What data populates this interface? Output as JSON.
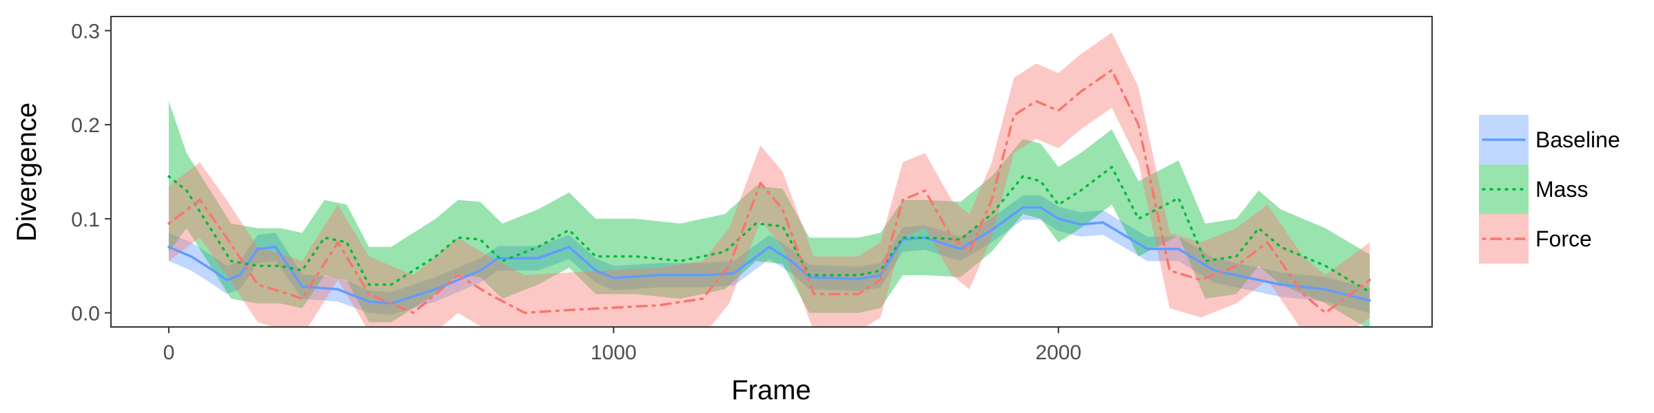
{
  "chart_data": {
    "type": "line",
    "xlabel": "Frame",
    "ylabel": "Divergence",
    "xlim": [
      -130,
      2840
    ],
    "ylim": [
      -0.015,
      0.315
    ],
    "xticks": [
      0,
      1000,
      2000
    ],
    "yticks": [
      0.0,
      0.1,
      0.2,
      0.3
    ],
    "xtick_labels": [
      "0",
      "1000",
      "2000"
    ],
    "ytick_labels": [
      "0.0",
      "0.1",
      "0.2",
      "0.3"
    ],
    "grid": false,
    "legend_position": "right",
    "series": [
      {
        "name": "Baseline",
        "color": "#619CFF",
        "band_color": "#619CFF",
        "line_style": "solid",
        "points": [
          [
            0,
            0.07,
            0.055,
            0.085
          ],
          [
            50,
            0.06,
            0.045,
            0.075
          ],
          [
            100,
            0.045,
            0.03,
            0.06
          ],
          [
            130,
            0.035,
            0.02,
            0.05
          ],
          [
            160,
            0.04,
            0.025,
            0.055
          ],
          [
            200,
            0.068,
            0.053,
            0.083
          ],
          [
            240,
            0.07,
            0.055,
            0.085
          ],
          [
            300,
            0.028,
            0.015,
            0.041
          ],
          [
            380,
            0.025,
            0.012,
            0.038
          ],
          [
            450,
            0.012,
            0.0,
            0.024
          ],
          [
            500,
            0.01,
            -0.002,
            0.022
          ],
          [
            600,
            0.025,
            0.012,
            0.038
          ],
          [
            700,
            0.045,
            0.032,
            0.058
          ],
          [
            740,
            0.058,
            0.045,
            0.071
          ],
          [
            830,
            0.058,
            0.045,
            0.071
          ],
          [
            900,
            0.07,
            0.057,
            0.083
          ],
          [
            960,
            0.045,
            0.032,
            0.058
          ],
          [
            1000,
            0.037,
            0.024,
            0.05
          ],
          [
            1100,
            0.04,
            0.027,
            0.053
          ],
          [
            1200,
            0.04,
            0.027,
            0.053
          ],
          [
            1270,
            0.042,
            0.029,
            0.055
          ],
          [
            1350,
            0.07,
            0.057,
            0.083
          ],
          [
            1400,
            0.055,
            0.042,
            0.068
          ],
          [
            1440,
            0.038,
            0.025,
            0.051
          ],
          [
            1550,
            0.036,
            0.023,
            0.049
          ],
          [
            1600,
            0.04,
            0.027,
            0.053
          ],
          [
            1650,
            0.078,
            0.065,
            0.091
          ],
          [
            1700,
            0.08,
            0.067,
            0.093
          ],
          [
            1780,
            0.068,
            0.055,
            0.081
          ],
          [
            1850,
            0.088,
            0.075,
            0.101
          ],
          [
            1920,
            0.112,
            0.099,
            0.125
          ],
          [
            1960,
            0.112,
            0.099,
            0.125
          ],
          [
            2000,
            0.1,
            0.087,
            0.113
          ],
          [
            2050,
            0.094,
            0.081,
            0.107
          ],
          [
            2100,
            0.096,
            0.083,
            0.109
          ],
          [
            2200,
            0.068,
            0.055,
            0.081
          ],
          [
            2270,
            0.068,
            0.055,
            0.081
          ],
          [
            2350,
            0.045,
            0.032,
            0.058
          ],
          [
            2420,
            0.038,
            0.025,
            0.051
          ],
          [
            2500,
            0.03,
            0.017,
            0.043
          ],
          [
            2600,
            0.025,
            0.012,
            0.038
          ],
          [
            2700,
            0.013,
            0.0,
            0.026
          ]
        ]
      },
      {
        "name": "Mass",
        "color": "#00BA38",
        "band_color": "#00BA38",
        "line_style": "dotted",
        "points": [
          [
            0,
            0.145,
            0.065,
            0.225
          ],
          [
            40,
            0.13,
            0.09,
            0.17
          ],
          [
            100,
            0.085,
            0.045,
            0.125
          ],
          [
            140,
            0.055,
            0.015,
            0.095
          ],
          [
            200,
            0.05,
            0.01,
            0.09
          ],
          [
            250,
            0.05,
            0.01,
            0.09
          ],
          [
            300,
            0.045,
            0.005,
            0.085
          ],
          [
            350,
            0.08,
            0.04,
            0.12
          ],
          [
            400,
            0.075,
            0.035,
            0.115
          ],
          [
            450,
            0.03,
            -0.01,
            0.07
          ],
          [
            500,
            0.03,
            -0.01,
            0.07
          ],
          [
            600,
            0.06,
            0.02,
            0.1
          ],
          [
            650,
            0.08,
            0.04,
            0.12
          ],
          [
            700,
            0.078,
            0.038,
            0.118
          ],
          [
            750,
            0.055,
            0.015,
            0.095
          ],
          [
            830,
            0.07,
            0.03,
            0.11
          ],
          [
            900,
            0.088,
            0.048,
            0.128
          ],
          [
            960,
            0.06,
            0.02,
            0.1
          ],
          [
            1050,
            0.06,
            0.02,
            0.1
          ],
          [
            1150,
            0.055,
            0.015,
            0.095
          ],
          [
            1250,
            0.065,
            0.025,
            0.105
          ],
          [
            1320,
            0.095,
            0.055,
            0.135
          ],
          [
            1380,
            0.092,
            0.052,
            0.132
          ],
          [
            1440,
            0.04,
            0.0,
            0.08
          ],
          [
            1550,
            0.04,
            0.0,
            0.08
          ],
          [
            1600,
            0.045,
            0.005,
            0.085
          ],
          [
            1650,
            0.08,
            0.04,
            0.12
          ],
          [
            1700,
            0.08,
            0.04,
            0.12
          ],
          [
            1780,
            0.078,
            0.038,
            0.118
          ],
          [
            1850,
            0.105,
            0.065,
            0.145
          ],
          [
            1920,
            0.145,
            0.105,
            0.185
          ],
          [
            1960,
            0.14,
            0.1,
            0.18
          ],
          [
            2000,
            0.115,
            0.075,
            0.155
          ],
          [
            2050,
            0.13,
            0.09,
            0.17
          ],
          [
            2120,
            0.155,
            0.115,
            0.195
          ],
          [
            2180,
            0.1,
            0.06,
            0.14
          ],
          [
            2270,
            0.122,
            0.082,
            0.162
          ],
          [
            2330,
            0.055,
            0.015,
            0.095
          ],
          [
            2400,
            0.06,
            0.02,
            0.1
          ],
          [
            2450,
            0.09,
            0.05,
            0.13
          ],
          [
            2500,
            0.07,
            0.03,
            0.11
          ],
          [
            2600,
            0.05,
            0.01,
            0.09
          ],
          [
            2700,
            0.022,
            -0.018,
            0.062
          ]
        ]
      },
      {
        "name": "Force",
        "color": "#F8766D",
        "band_color": "#F8766D",
        "line_style": "dotdash",
        "points": [
          [
            0,
            0.095,
            0.055,
            0.135
          ],
          [
            70,
            0.12,
            0.08,
            0.16
          ],
          [
            130,
            0.08,
            0.04,
            0.12
          ],
          [
            200,
            0.03,
            -0.01,
            0.07
          ],
          [
            270,
            0.02,
            -0.02,
            0.06
          ],
          [
            300,
            0.015,
            -0.025,
            0.055
          ],
          [
            380,
            0.075,
            0.035,
            0.115
          ],
          [
            450,
            0.02,
            -0.02,
            0.06
          ],
          [
            550,
            0.0,
            -0.04,
            0.04
          ],
          [
            650,
            0.04,
            0.0,
            0.08
          ],
          [
            720,
            0.02,
            -0.02,
            0.06
          ],
          [
            800,
            0.0,
            -0.04,
            0.04
          ],
          [
            900,
            0.003,
            -0.037,
            0.043
          ],
          [
            1100,
            0.008,
            -0.032,
            0.048
          ],
          [
            1200,
            0.015,
            -0.025,
            0.055
          ],
          [
            1260,
            0.05,
            0.01,
            0.09
          ],
          [
            1330,
            0.138,
            0.098,
            0.178
          ],
          [
            1380,
            0.11,
            0.07,
            0.15
          ],
          [
            1450,
            0.02,
            -0.02,
            0.06
          ],
          [
            1550,
            0.02,
            -0.02,
            0.06
          ],
          [
            1600,
            0.035,
            -0.005,
            0.075
          ],
          [
            1650,
            0.12,
            0.08,
            0.16
          ],
          [
            1700,
            0.13,
            0.09,
            0.17
          ],
          [
            1760,
            0.08,
            0.04,
            0.12
          ],
          [
            1800,
            0.065,
            0.025,
            0.105
          ],
          [
            1850,
            0.12,
            0.08,
            0.16
          ],
          [
            1900,
            0.21,
            0.17,
            0.25
          ],
          [
            1950,
            0.225,
            0.185,
            0.265
          ],
          [
            2000,
            0.215,
            0.175,
            0.255
          ],
          [
            2050,
            0.235,
            0.195,
            0.275
          ],
          [
            2120,
            0.258,
            0.218,
            0.298
          ],
          [
            2180,
            0.2,
            0.16,
            0.24
          ],
          [
            2250,
            0.045,
            0.005,
            0.085
          ],
          [
            2320,
            0.035,
            -0.005,
            0.075
          ],
          [
            2400,
            0.05,
            0.01,
            0.09
          ],
          [
            2470,
            0.075,
            0.035,
            0.115
          ],
          [
            2550,
            0.02,
            -0.02,
            0.06
          ],
          [
            2600,
            0.0,
            -0.04,
            0.04
          ],
          [
            2700,
            0.035,
            -0.005,
            0.075
          ]
        ]
      }
    ]
  }
}
